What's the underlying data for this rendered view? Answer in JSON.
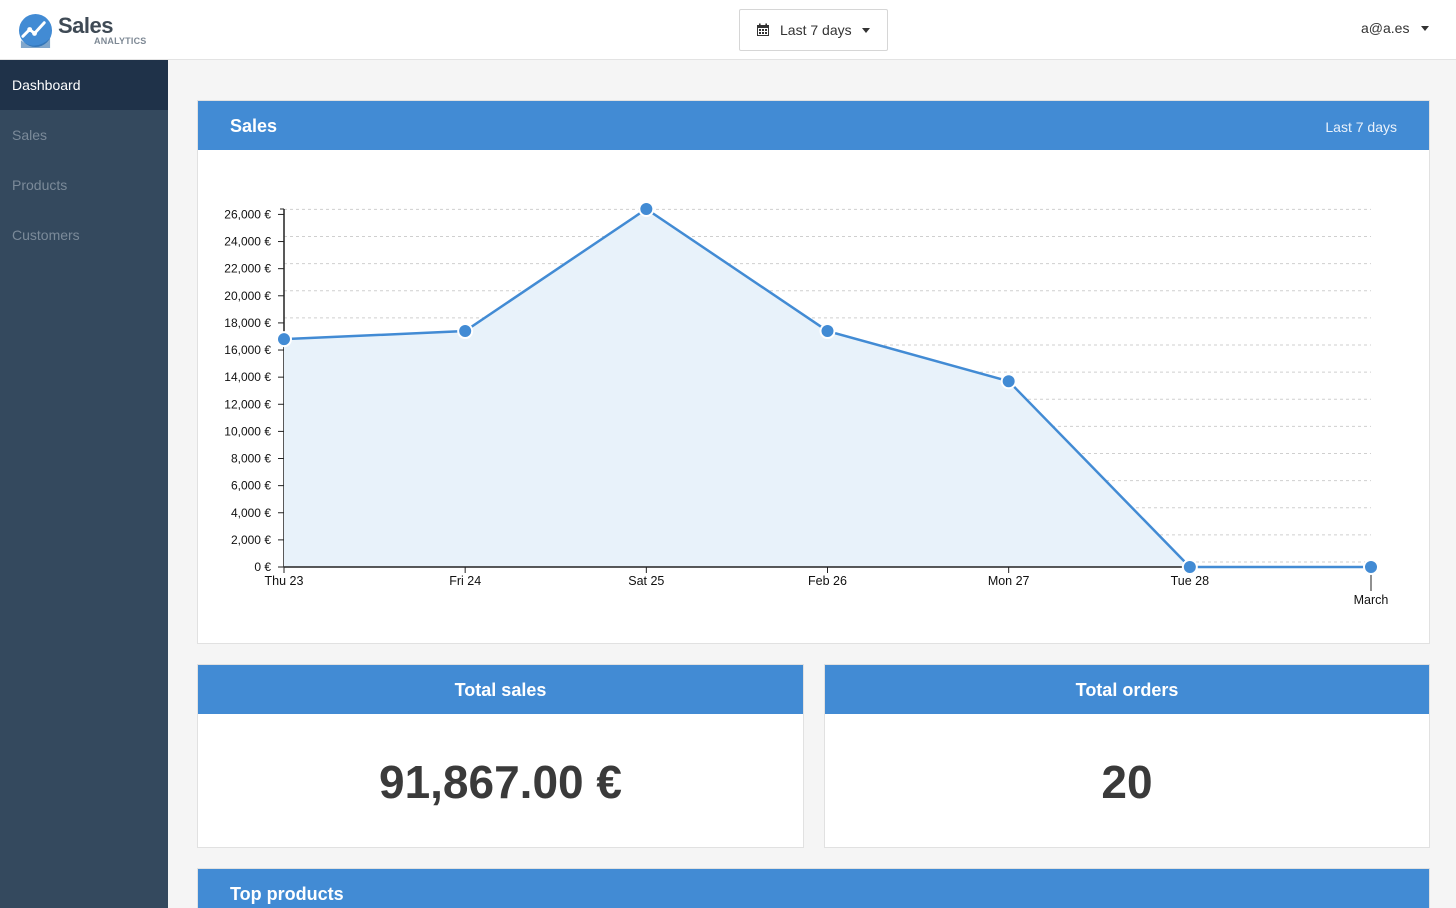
{
  "app": {
    "logo_title": "Sales",
    "logo_subtitle": "ANALYTICS"
  },
  "header": {
    "range_label": "Last 7 days",
    "range_icon": "calendar-icon",
    "user_email": "a@a.es"
  },
  "sidebar": {
    "items": [
      {
        "label": "Dashboard",
        "active": true
      },
      {
        "label": "Sales",
        "active": false
      },
      {
        "label": "Products",
        "active": false
      },
      {
        "label": "Customers",
        "active": false
      }
    ]
  },
  "sales_panel": {
    "title": "Sales",
    "range": "Last 7 days"
  },
  "kpis": {
    "total_sales_title": "Total sales",
    "total_sales_value": "91,867.00 €",
    "total_orders_title": "Total orders",
    "total_orders_value": "20"
  },
  "top_products": {
    "title": "Top products"
  },
  "colors": {
    "accent": "#428bd4",
    "sidebar_bg": "#34495e",
    "sidebar_active": "#1f3249",
    "area_fill": "#e8f2fa"
  },
  "chart_data": {
    "type": "area",
    "categories": [
      "Thu 23",
      "Fri 24",
      "Sat 25",
      "Feb 26",
      "Mon 27",
      "Tue 28",
      "March"
    ],
    "values": [
      16800,
      17400,
      26400,
      17400,
      13700,
      0,
      0
    ],
    "y_ticks": [
      "0 €",
      "2,000 €",
      "4,000 €",
      "6,000 €",
      "8,000 €",
      "10,000 €",
      "12,000 €",
      "14,000 €",
      "16,000 €",
      "18,000 €",
      "20,000 €",
      "22,000 €",
      "24,000 €",
      "26,000 €"
    ],
    "ylim": [
      0,
      26400
    ],
    "grid": true,
    "legend": false
  }
}
